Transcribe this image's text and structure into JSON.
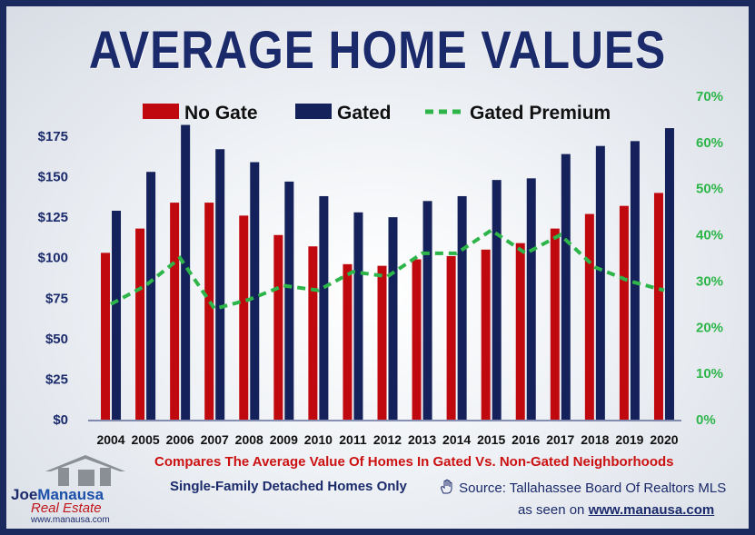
{
  "title": "AVERAGE HOME VALUES",
  "subtitle_red": "Compares The Average Value Of Homes In Gated Vs. Non-Gated Neighborhoods",
  "subtitle_blue": "Single-Family Detached Homes Only",
  "source": "Source: Tallahassee Board Of Realtors MLS",
  "seen_on_prefix": "as seen on ",
  "seen_on_url": "www.manausa.com",
  "logo": {
    "joe": "Joe",
    "manausa": "Manausa",
    "real_estate": "Real Estate",
    "www": "www.manausa.com",
    "icon": "house-icon"
  },
  "hand_icon": "hand-icon",
  "colors": {
    "no_gate": "#c0080f",
    "gated": "#14215a",
    "premium": "#2db54a",
    "left_axis_text": "#1b2a6b",
    "right_axis_text": "#2db54a",
    "red_text": "#cc1111",
    "title": "#1b2a6b"
  },
  "chart_data": {
    "type": "bar",
    "categories": [
      "2004",
      "2005",
      "2006",
      "2007",
      "2008",
      "2009",
      "2010",
      "2011",
      "2012",
      "2013",
      "2014",
      "2015",
      "2016",
      "2017",
      "2018",
      "2019",
      "2020"
    ],
    "series": [
      {
        "name": "No Gate",
        "type": "bar",
        "axis": "left",
        "values": [
          103,
          118,
          134,
          134,
          126,
          114,
          107,
          96,
          95,
          99,
          101,
          105,
          109,
          118,
          127,
          132,
          140
        ]
      },
      {
        "name": "Gated",
        "type": "bar",
        "axis": "left",
        "values": [
          129,
          153,
          182,
          167,
          159,
          147,
          138,
          128,
          125,
          135,
          138,
          148,
          149,
          164,
          169,
          172,
          180
        ]
      },
      {
        "name": "Gated Premium",
        "type": "line",
        "style": "dashed",
        "axis": "right",
        "values": [
          25,
          29,
          35,
          24,
          26,
          29,
          28,
          32,
          31,
          36,
          36,
          41,
          36,
          40,
          33,
          30,
          28
        ]
      }
    ],
    "y_left": {
      "ticks": [
        "$0",
        "$25",
        "$50",
        "$75",
        "$100",
        "$125",
        "$150",
        "$175"
      ],
      "ylim": [
        0,
        175
      ]
    },
    "y_right": {
      "ticks": [
        "0%",
        "10%",
        "20%",
        "30%",
        "40%",
        "50%",
        "60%",
        "70%"
      ],
      "ylim": [
        0,
        70
      ]
    },
    "legend_position": "top-center",
    "grid": false
  }
}
